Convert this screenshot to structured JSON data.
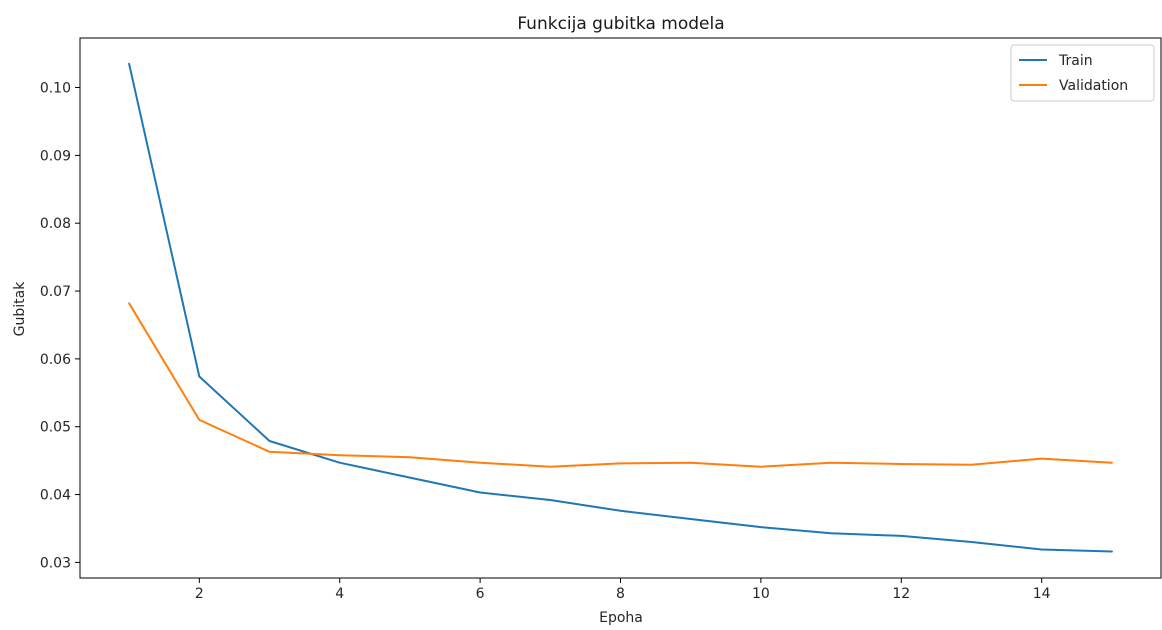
{
  "chart_data": {
    "type": "line",
    "title": "Funkcija gubitka modela",
    "xlabel": "Epoha",
    "ylabel": "Gubitak",
    "x": [
      1,
      2,
      3,
      4,
      5,
      6,
      7,
      8,
      9,
      10,
      11,
      12,
      13,
      14,
      15
    ],
    "xlim": [
      0.3,
      15.7
    ],
    "ylim": [
      0.0277,
      0.1073
    ],
    "xticks": [
      2,
      4,
      6,
      8,
      10,
      12,
      14
    ],
    "yticks": [
      0.03,
      0.04,
      0.05,
      0.06,
      0.07,
      0.08,
      0.09,
      0.1
    ],
    "ytick_labels": [
      "0.03",
      "0.04",
      "0.05",
      "0.06",
      "0.07",
      "0.08",
      "0.09",
      "0.10"
    ],
    "grid": false,
    "legend_position": "top-right",
    "series": [
      {
        "name": "Train",
        "color": "#1f77b4",
        "values": [
          0.1035,
          0.0574,
          0.0479,
          0.0447,
          0.0425,
          0.0403,
          0.0392,
          0.0376,
          0.0364,
          0.0352,
          0.0343,
          0.0339,
          0.033,
          0.0319,
          0.0316
        ]
      },
      {
        "name": "Validation",
        "color": "#ff7f0e",
        "values": [
          0.0682,
          0.051,
          0.0463,
          0.0458,
          0.0455,
          0.0447,
          0.0441,
          0.0446,
          0.0447,
          0.0441,
          0.0447,
          0.0445,
          0.0444,
          0.0453,
          0.0447
        ]
      }
    ]
  }
}
